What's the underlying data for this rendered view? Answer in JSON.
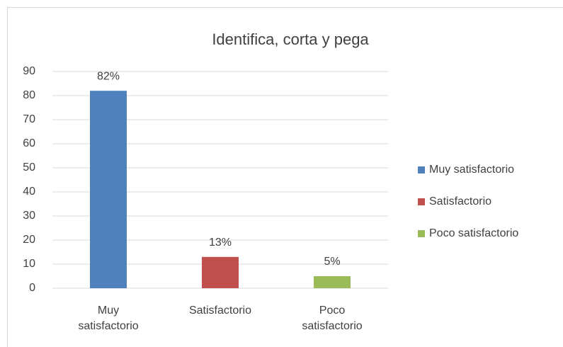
{
  "chart_data": {
    "type": "bar",
    "title": "Identifica, corta y pega",
    "categories": [
      "Muy satisfactorio",
      "Satisfactorio",
      "Poco satisfactorio"
    ],
    "values": [
      82,
      13,
      5
    ],
    "value_labels": [
      "82%",
      "13%",
      "5%"
    ],
    "colors": [
      "#4f81bd",
      "#c0504d",
      "#9bbb59"
    ],
    "ylim": [
      0,
      90
    ],
    "yticks": [
      0,
      10,
      20,
      30,
      40,
      50,
      60,
      70,
      80,
      90
    ],
    "grid": true,
    "legend": "right"
  }
}
